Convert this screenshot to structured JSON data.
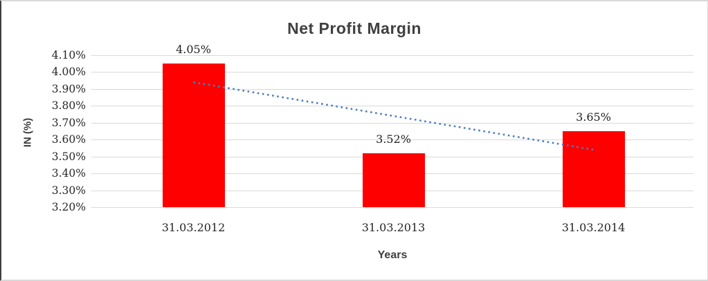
{
  "chart_data": {
    "type": "bar",
    "title": "Net Profit Margin",
    "xlabel": "Years",
    "ylabel": "IN (%)",
    "categories": [
      "31.03.2012",
      "31.03.2013",
      "31.03.2014"
    ],
    "values": [
      4.05,
      3.52,
      3.65
    ],
    "data_labels": [
      "4.05%",
      "3.52%",
      "3.65%"
    ],
    "ylim": [
      3.2,
      4.1
    ],
    "y_tick_step": 0.1,
    "y_tick_labels": [
      "4.10%",
      "4.00%",
      "3.90%",
      "3.80%",
      "3.70%",
      "3.60%",
      "3.50%",
      "3.40%",
      "3.30%",
      "3.20%"
    ],
    "grid": true,
    "legend": "none",
    "bar_color": "#FF0000",
    "gridline_color": "#D9D9D9",
    "text_color": "#262626",
    "title_color": "#404040",
    "trendline": {
      "type": "linear",
      "style": "dotted",
      "color": "#4A7EBF",
      "endpoint_values": [
        3.94,
        3.54
      ]
    }
  }
}
